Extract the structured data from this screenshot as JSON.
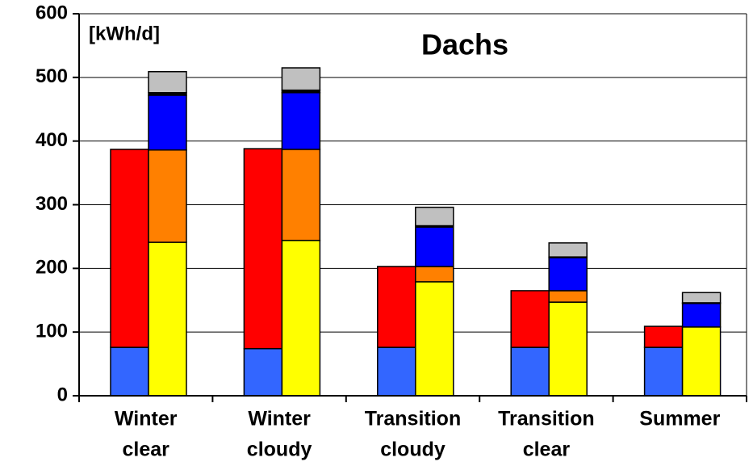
{
  "chart_data": {
    "type": "stacked-bar",
    "title": "Dachs",
    "annotation": "[kWh/d]",
    "categories": [
      [
        "Winter",
        "clear"
      ],
      [
        "Winter",
        "cloudy"
      ],
      [
        "Transition",
        "cloudy"
      ],
      [
        "Transition",
        "clear"
      ],
      [
        "Summer"
      ]
    ],
    "series": [
      {
        "color": "#3366ff",
        "stack": "left",
        "values": [
          76,
          74,
          76,
          76,
          76
        ]
      },
      {
        "color": "#ff0000",
        "stack": "left",
        "values": [
          311,
          314,
          127,
          89,
          33
        ]
      },
      {
        "color": "#ffff00",
        "stack": "right",
        "values": [
          241,
          244,
          179,
          147,
          108
        ]
      },
      {
        "color": "#ff8000",
        "stack": "right",
        "values": [
          145,
          143,
          24,
          18,
          0
        ]
      },
      {
        "color": "#0000ff",
        "stack": "right",
        "values": [
          86,
          89,
          62,
          52,
          37
        ]
      },
      {
        "color": "#000000",
        "stack": "right",
        "values": [
          4,
          4,
          2,
          1,
          1
        ]
      },
      {
        "color": "#c0c0c0",
        "stack": "right",
        "values": [
          33,
          35,
          29,
          22,
          16
        ]
      }
    ],
    "ylim": [
      0,
      600
    ],
    "yticks": [
      0,
      100,
      200,
      300,
      400,
      500,
      600
    ],
    "grid": true
  }
}
